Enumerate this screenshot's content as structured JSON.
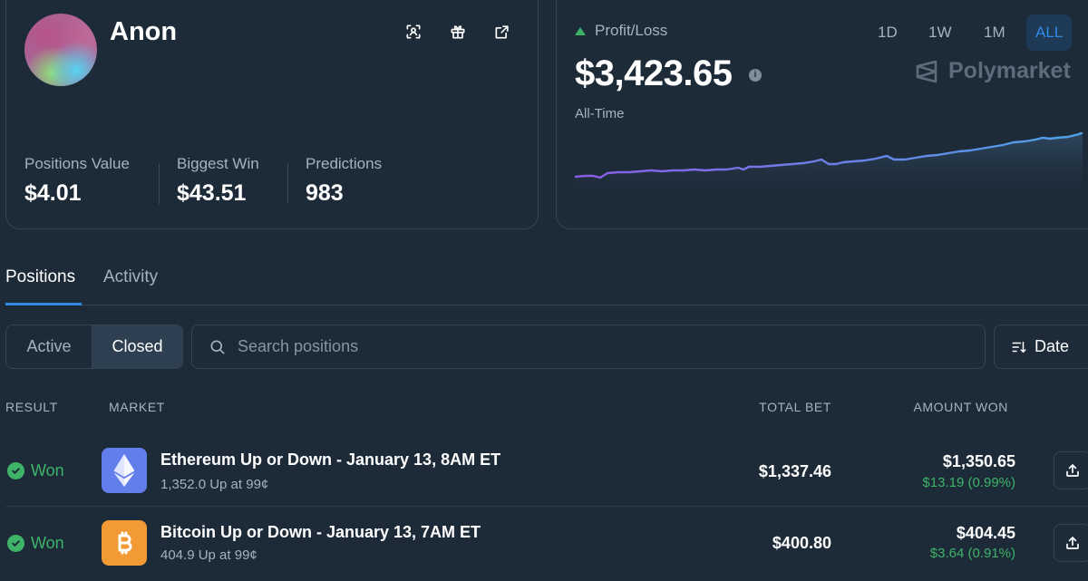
{
  "profile": {
    "username": "Anon",
    "icons": [
      "scan-icon",
      "gift-icon",
      "external-link-icon"
    ],
    "stats": [
      {
        "label": "Positions Value",
        "value": "$4.01"
      },
      {
        "label": "Biggest Win",
        "value": "$43.51"
      },
      {
        "label": "Predictions",
        "value": "983"
      }
    ]
  },
  "pnl": {
    "label": "Profit/Loss",
    "value": "$3,423.65",
    "period": "All-Time",
    "ranges": [
      "1D",
      "1W",
      "1M",
      "ALL"
    ],
    "selected_range": "ALL",
    "brand": "Polymarket",
    "trend_color": "#3db468",
    "line_gradient": [
      "#8a5ce6",
      "#4fa2e8"
    ]
  },
  "tabs": {
    "positions": "Positions",
    "activity": "Activity",
    "selected": "Positions"
  },
  "filters": {
    "active": "Active",
    "closed": "Closed",
    "selected": "Closed",
    "search_placeholder": "Search positions",
    "sort_label": "Date"
  },
  "table": {
    "headers": {
      "result": "RESULT",
      "market": "MARKET",
      "total_bet": "TOTAL BET",
      "amount_won": "AMOUNT WON"
    },
    "rows": [
      {
        "result": "Won",
        "coin": "ethereum-icon",
        "title": "Ethereum Up or Down - January 13, 8AM ET",
        "subtitle": "1,352.0 Up at 99¢",
        "total_bet": "$1,337.46",
        "amount_won": "$1,350.65",
        "profit": "$13.19 (0.99%)"
      },
      {
        "result": "Won",
        "coin": "bitcoin-icon",
        "title": "Bitcoin Up or Down - January 13, 7AM ET",
        "subtitle": "404.9 Up at 99¢",
        "total_bet": "$400.80",
        "amount_won": "$404.45",
        "profit": "$3.64 (0.91%)"
      }
    ]
  },
  "colors": {
    "background": "#1d2b39",
    "accent": "#2f8ae6",
    "positive": "#3db468",
    "muted": "#a5b2bf"
  }
}
